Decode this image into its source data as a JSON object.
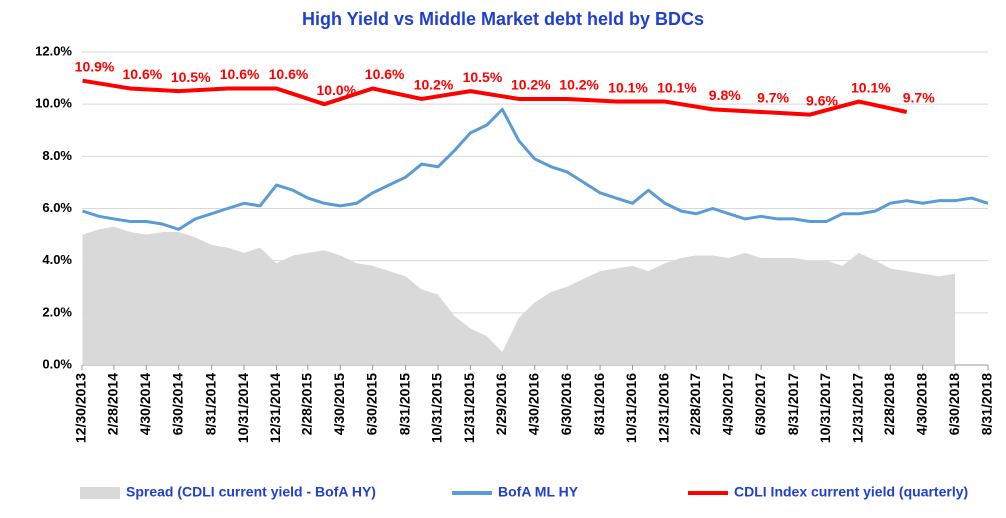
{
  "chart_data": {
    "type": "line",
    "title": "High Yield  vs  Middle Market debt held by BDCs",
    "xlim": [
      "12/30/2013",
      "8/31/2018"
    ],
    "xticks": [
      "12/30/2013",
      "2/28/2014",
      "4/30/2014",
      "6/30/2014",
      "8/31/2014",
      "10/31/2014",
      "12/31/2014",
      "2/28/2015",
      "4/30/2015",
      "6/30/2015",
      "8/31/2015",
      "10/31/2015",
      "12/31/2015",
      "2/29/2016",
      "4/30/2016",
      "6/30/2016",
      "8/31/2016",
      "10/31/2016",
      "12/31/2016",
      "2/28/2017",
      "4/30/2017",
      "6/30/2017",
      "8/31/2017",
      "10/31/2017",
      "12/31/2017",
      "2/28/2018",
      "4/30/2018",
      "6/30/2018",
      "8/31/2018"
    ],
    "ylim": [
      0,
      12
    ],
    "yticks": [
      {
        "value": 0,
        "label": "0.0%"
      },
      {
        "value": 2,
        "label": "2.0%"
      },
      {
        "value": 4,
        "label": "4.0%"
      },
      {
        "value": 6,
        "label": "6.0%"
      },
      {
        "value": 8,
        "label": "8.0%"
      },
      {
        "value": 10,
        "label": "10.0%"
      },
      {
        "value": 12,
        "label": "12.0%"
      }
    ],
    "grid": true,
    "legend": "bottom",
    "series": [
      {
        "name": "Spread (CDLI current yield - BofA HY)",
        "kind": "area",
        "color": "#d9d9d9",
        "x": [
          "12/31/2013",
          "1/31/2014",
          "2/28/2014",
          "3/31/2014",
          "4/30/2014",
          "5/31/2014",
          "6/30/2014",
          "7/31/2014",
          "8/31/2014",
          "9/30/2014",
          "10/31/2014",
          "11/30/2014",
          "12/31/2014",
          "1/31/2015",
          "2/28/2015",
          "3/31/2015",
          "4/30/2015",
          "5/31/2015",
          "6/30/2015",
          "7/31/2015",
          "8/31/2015",
          "9/30/2015",
          "10/31/2015",
          "11/30/2015",
          "12/31/2015",
          "1/31/2016",
          "2/29/2016",
          "3/31/2016",
          "4/30/2016",
          "5/31/2016",
          "6/30/2016",
          "7/31/2016",
          "8/31/2016",
          "9/30/2016",
          "10/31/2016",
          "11/30/2016",
          "12/31/2016",
          "1/31/2017",
          "2/28/2017",
          "3/31/2017",
          "4/30/2017",
          "5/31/2017",
          "6/30/2017",
          "7/31/2017",
          "8/31/2017",
          "9/30/2017",
          "10/31/2017",
          "11/30/2017",
          "12/31/2017",
          "1/31/2018",
          "2/28/2018",
          "3/31/2018",
          "4/30/2018",
          "5/31/2018",
          "6/30/2018"
        ],
        "values": [
          5.0,
          5.2,
          5.3,
          5.1,
          5.0,
          5.1,
          5.1,
          4.9,
          4.6,
          4.5,
          4.3,
          4.5,
          3.9,
          4.2,
          4.3,
          4.4,
          4.2,
          3.9,
          3.8,
          3.6,
          3.4,
          2.9,
          2.7,
          1.9,
          1.4,
          1.1,
          0.5,
          1.8,
          2.4,
          2.8,
          3.0,
          3.3,
          3.6,
          3.7,
          3.8,
          3.6,
          3.9,
          4.1,
          4.2,
          4.2,
          4.1,
          4.3,
          4.1,
          4.1,
          4.1,
          4.0,
          4.0,
          3.8,
          4.3,
          4.0,
          3.7,
          3.6,
          3.5,
          3.4,
          3.5
        ]
      },
      {
        "name": "BofA ML HY",
        "kind": "line",
        "color": "#5b9bd5",
        "x": [
          "12/31/2013",
          "1/31/2014",
          "2/28/2014",
          "3/31/2014",
          "4/30/2014",
          "5/31/2014",
          "6/30/2014",
          "7/31/2014",
          "8/31/2014",
          "9/30/2014",
          "10/31/2014",
          "11/30/2014",
          "12/31/2014",
          "1/31/2015",
          "2/28/2015",
          "3/31/2015",
          "4/30/2015",
          "5/31/2015",
          "6/30/2015",
          "7/31/2015",
          "8/31/2015",
          "9/30/2015",
          "10/31/2015",
          "11/30/2015",
          "12/31/2015",
          "1/31/2016",
          "2/29/2016",
          "3/31/2016",
          "4/30/2016",
          "5/31/2016",
          "6/30/2016",
          "7/31/2016",
          "8/31/2016",
          "9/30/2016",
          "10/31/2016",
          "11/30/2016",
          "12/31/2016",
          "1/31/2017",
          "2/28/2017",
          "3/31/2017",
          "4/30/2017",
          "5/31/2017",
          "6/30/2017",
          "7/31/2017",
          "8/31/2017",
          "9/30/2017",
          "10/31/2017",
          "11/30/2017",
          "12/31/2017",
          "1/31/2018",
          "2/28/2018",
          "3/31/2018",
          "4/30/2018",
          "5/31/2018",
          "6/30/2018",
          "7/31/2018",
          "8/31/2018"
        ],
        "values": [
          5.9,
          5.7,
          5.6,
          5.5,
          5.5,
          5.4,
          5.2,
          5.6,
          5.8,
          6.0,
          6.2,
          6.1,
          6.9,
          6.7,
          6.4,
          6.2,
          6.1,
          6.2,
          6.6,
          6.9,
          7.2,
          7.7,
          7.6,
          8.2,
          8.9,
          9.2,
          9.8,
          8.6,
          7.9,
          7.6,
          7.4,
          7.0,
          6.6,
          6.4,
          6.2,
          6.7,
          6.2,
          5.9,
          5.8,
          6.0,
          5.8,
          5.6,
          5.7,
          5.6,
          5.6,
          5.5,
          5.5,
          5.8,
          5.8,
          5.9,
          6.2,
          6.3,
          6.2,
          6.3,
          6.3,
          6.4,
          6.2
        ]
      },
      {
        "name": "CDLI Index current yield (quarterly)",
        "kind": "line",
        "color": "#ff0000",
        "x": [
          "12/31/2013",
          "3/31/2014",
          "6/30/2014",
          "9/30/2014",
          "12/31/2014",
          "3/31/2015",
          "6/30/2015",
          "9/30/2015",
          "12/31/2015",
          "3/31/2016",
          "6/30/2016",
          "9/30/2016",
          "12/31/2016",
          "3/31/2017",
          "6/30/2017",
          "9/30/2017",
          "12/31/2017",
          "3/31/2018"
        ],
        "values": [
          10.9,
          10.6,
          10.5,
          10.6,
          10.6,
          10.0,
          10.6,
          10.2,
          10.5,
          10.2,
          10.2,
          10.1,
          10.1,
          9.8,
          9.7,
          9.6,
          10.1,
          9.7
        ],
        "value_labels": [
          "10.9%",
          "10.6%",
          "10.5%",
          "10.6%",
          "10.6%",
          "10.0%",
          "10.6%",
          "10.2%",
          "10.5%",
          "10.2%",
          "10.2%",
          "10.1%",
          "10.1%",
          "9.8%",
          "9.7%",
          "9.6%",
          "10.1%",
          "9.7%"
        ]
      }
    ]
  }
}
